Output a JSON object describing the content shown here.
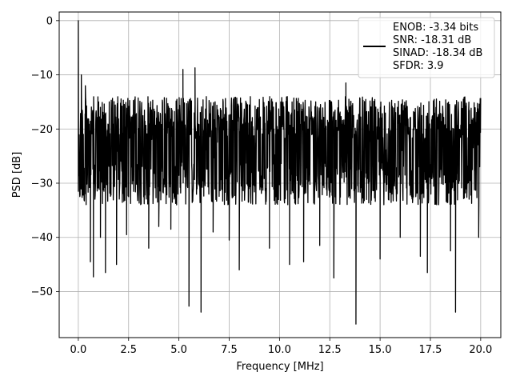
{
  "chart_data": {
    "type": "line",
    "title": "",
    "xlabel": "Frequency [MHz]",
    "ylabel": "PSD [dB]",
    "xlim": [
      -0.95,
      21.0
    ],
    "ylim": [
      -58.5,
      1.6
    ],
    "grid": true,
    "legend_position": "top-right",
    "xticks": [
      0.0,
      2.5,
      5.0,
      7.5,
      10.0,
      12.5,
      15.0,
      17.5,
      20.0
    ],
    "xtick_labels": [
      "0.0",
      "2.5",
      "5.0",
      "7.5",
      "10.0",
      "12.5",
      "15.0",
      "17.5",
      "20.0"
    ],
    "yticks": [
      0,
      -10,
      -20,
      -30,
      -40,
      -50
    ],
    "ytick_labels": [
      "0",
      "−10",
      "−20",
      "−30",
      "−40",
      "−50"
    ],
    "legend": [
      "ENOB: -3.34 bits",
      "SNR: -18.31 dB",
      "SINAD: -18.34 dB",
      "SFDR: 3.9"
    ],
    "line_color": "#000000",
    "series": [
      {
        "x_start": 0.0,
        "x_end": 20.0,
        "noise_floor_db": [
          -34,
          -14
        ],
        "notable_points": [
          {
            "x": 0.0,
            "y": 0.0
          },
          {
            "x": 0.05,
            "y": -26.5
          },
          {
            "x": 0.15,
            "y": -10.0
          },
          {
            "x": 0.35,
            "y": -12.0
          },
          {
            "x": 0.6,
            "y": -44.5
          },
          {
            "x": 0.75,
            "y": -47.3
          },
          {
            "x": 1.1,
            "y": -40.0
          },
          {
            "x": 1.35,
            "y": -46.5
          },
          {
            "x": 1.9,
            "y": -45.0
          },
          {
            "x": 2.4,
            "y": -39.5
          },
          {
            "x": 3.5,
            "y": -42.0
          },
          {
            "x": 4.0,
            "y": -38.0
          },
          {
            "x": 4.6,
            "y": -38.5
          },
          {
            "x": 5.2,
            "y": -9.0
          },
          {
            "x": 5.5,
            "y": -52.7
          },
          {
            "x": 5.8,
            "y": -8.7
          },
          {
            "x": 6.1,
            "y": -53.8
          },
          {
            "x": 6.7,
            "y": -39.0
          },
          {
            "x": 7.5,
            "y": -40.5
          },
          {
            "x": 8.0,
            "y": -46.0
          },
          {
            "x": 9.5,
            "y": -42.0
          },
          {
            "x": 10.5,
            "y": -45.0
          },
          {
            "x": 11.2,
            "y": -44.5
          },
          {
            "x": 12.0,
            "y": -41.5
          },
          {
            "x": 12.7,
            "y": -47.5
          },
          {
            "x": 13.3,
            "y": -11.5
          },
          {
            "x": 13.8,
            "y": -56.0
          },
          {
            "x": 15.0,
            "y": -44.0
          },
          {
            "x": 16.0,
            "y": -40.0
          },
          {
            "x": 17.0,
            "y": -43.5
          },
          {
            "x": 17.35,
            "y": -46.5
          },
          {
            "x": 18.5,
            "y": -42.5
          },
          {
            "x": 18.75,
            "y": -53.8
          },
          {
            "x": 19.9,
            "y": -40.0
          }
        ]
      }
    ]
  }
}
